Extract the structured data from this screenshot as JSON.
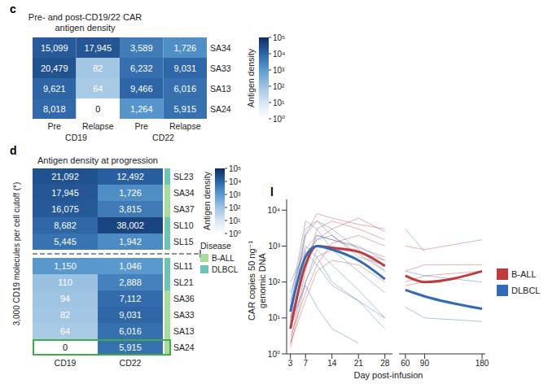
{
  "chart_data": [
    {
      "type": "heatmap",
      "panel": "c",
      "title": "Pre- and post-CD19/22 CAR antigen density",
      "columns": [
        "Pre",
        "Relapse",
        "Pre",
        "Relapse"
      ],
      "column_groups": [
        {
          "label": "CD19",
          "span": 2
        },
        {
          "label": "CD22",
          "span": 2
        }
      ],
      "rows": [
        "SA34",
        "SA33",
        "SA13",
        "SA24"
      ],
      "cells": [
        [
          15099,
          17945,
          3589,
          1726
        ],
        [
          20479,
          82,
          6232,
          9031
        ],
        [
          9621,
          64,
          9466,
          6016
        ],
        [
          8018,
          0,
          1264,
          5915
        ]
      ],
      "cell_labels": [
        [
          "15,099",
          "17,945",
          "3,589",
          "1,726"
        ],
        [
          "20,479",
          "82",
          "6,232",
          "9,031"
        ],
        [
          "9,621",
          "64",
          "9,466",
          "6,016"
        ],
        [
          "8,018",
          "0",
          "1,264",
          "5,915"
        ]
      ],
      "colorbar": {
        "title": "Antigen density",
        "range": [
          1,
          100000
        ],
        "ticks": [
          {
            "value": 1,
            "label": "10⁰"
          },
          {
            "value": 10,
            "label": "10¹"
          },
          {
            "value": 100,
            "label": "10²"
          },
          {
            "value": 1000,
            "label": "10³"
          },
          {
            "value": 10000,
            "label": "10⁴"
          },
          {
            "value": 100000,
            "label": "10⁵"
          }
        ]
      }
    },
    {
      "type": "heatmap",
      "panel": "d",
      "title": "Antigen density at progression",
      "y_label": "3,000 CD19 molecules per cell cutoff (*)",
      "cutoff": 3000,
      "columns": [
        "CD19",
        "CD22"
      ],
      "rows": [
        "SL23",
        "SA34",
        "SA37",
        "SL10",
        "SL15",
        "SL11",
        "SL21",
        "SA36",
        "SA33",
        "SA13",
        "SA24"
      ],
      "row_disease": [
        "DLBCL",
        "B-ALL",
        "B-ALL",
        "DLBCL",
        "DLBCL",
        "DLBCL",
        "DLBCL",
        "B-ALL",
        "B-ALL",
        "B-ALL",
        "B-ALL"
      ],
      "cells": [
        [
          21092,
          12492
        ],
        [
          17945,
          1726
        ],
        [
          16075,
          3815
        ],
        [
          8682,
          38002
        ],
        [
          5445,
          1942
        ],
        [
          1150,
          1046
        ],
        [
          110,
          2888
        ],
        [
          94,
          7112
        ],
        [
          82,
          9031
        ],
        [
          64,
          6016
        ],
        [
          0,
          5915
        ]
      ],
      "cell_labels": [
        [
          "21,092",
          "12,492"
        ],
        [
          "17,945",
          "1,726"
        ],
        [
          "16,075",
          "3,815"
        ],
        [
          "8,682",
          "38,002"
        ],
        [
          "5,445",
          "1,942"
        ],
        [
          "1,150",
          "1,046"
        ],
        [
          "110",
          "2,888"
        ],
        [
          "94",
          "7,112"
        ],
        [
          "82",
          "9,031"
        ],
        [
          "64",
          "6,016"
        ],
        [
          "0",
          "5,915"
        ]
      ],
      "highlight_row": "SA24",
      "colorbar": {
        "title": "Antigen density",
        "range": [
          1,
          100000
        ],
        "ticks": [
          {
            "value": 1,
            "label": "10⁰"
          },
          {
            "value": 10,
            "label": "10¹"
          },
          {
            "value": 100,
            "label": "10²"
          },
          {
            "value": 1000,
            "label": "10³"
          },
          {
            "value": 10000,
            "label": "10⁴"
          },
          {
            "value": 100000,
            "label": "10⁵"
          }
        ]
      },
      "disease_legend": {
        "title": "Disease",
        "entries": [
          {
            "name": "B-ALL",
            "color": "#a6dc9c"
          },
          {
            "name": "DLBCL",
            "color": "#6cc4b4"
          }
        ]
      }
    },
    {
      "type": "line",
      "panel": "l",
      "y_label": "CAR copies 50 ng⁻¹ genomic DNA",
      "x_label": "Day post-infusion",
      "log": "y",
      "ylim": [
        1,
        20000
      ],
      "yticks": [
        {
          "value": 1,
          "label": "10⁰"
        },
        {
          "value": 10,
          "label": "10¹"
        },
        {
          "value": 100,
          "label": "10²"
        },
        {
          "value": 1000,
          "label": "10³"
        },
        {
          "value": 10000,
          "label": "10⁴"
        }
      ],
      "x": [
        3,
        7,
        10,
        14,
        21,
        28,
        60,
        90,
        180
      ],
      "x_segments": [
        {
          "xlim": [
            2,
            30
          ],
          "xticks": [
            3,
            7,
            14,
            21,
            28
          ]
        },
        {
          "xlim": [
            50,
            185
          ],
          "xticks": [
            60,
            90,
            180
          ]
        }
      ],
      "legend": "right",
      "series": [
        {
          "name": "B-ALL",
          "color": "#c23b3b",
          "values": [
            5,
            300,
            1000,
            900,
            700,
            280,
            150,
            100,
            200
          ],
          "patients": [
            [
              2,
              200,
              3000,
              5000,
              3000,
              1500,
              null,
              null,
              null
            ],
            [
              10,
              2000,
              8000,
              6000,
              4000,
              3000,
              1000,
              800,
              1500
            ],
            [
              1.5,
              100,
              500,
              800,
              700,
              400,
              100,
              150,
              200
            ],
            [
              5,
              800,
              2000,
              1500,
              900,
              500,
              null,
              null,
              null
            ],
            [
              3,
              50,
              300,
              1200,
              2000,
              1000,
              200,
              300,
              300
            ],
            [
              20,
              3000,
              5000,
              2000,
              600,
              200,
              null,
              null,
              null
            ],
            [
              2,
              30,
              200,
              400,
              300,
              100,
              80,
              100,
              null
            ],
            [
              8,
              500,
              1500,
              3000,
              6000,
              2500,
              800,
              null,
              null
            ]
          ]
        },
        {
          "name": "DLBCL",
          "color": "#2f6bb8",
          "values": [
            15,
            500,
            1000,
            800,
            400,
            120,
            60,
            40,
            18
          ],
          "patients": [
            [
              20,
              2000,
              5000,
              3000,
              800,
              200,
              null,
              null,
              null
            ],
            [
              50,
              1000,
              500,
              100,
              30,
              5,
              null,
              null,
              null
            ],
            [
              10,
              300,
              2000,
              1500,
              1000,
              400,
              200,
              150,
              100
            ],
            [
              5,
              100,
              800,
              300,
              60,
              10,
              null,
              null,
              null
            ],
            [
              30,
              5000,
              3000,
              800,
              200,
              50,
              20,
              10,
              8
            ],
            [
              15,
              600,
              1500,
              2000,
              500,
              300,
              3000,
              700,
              null
            ],
            [
              8,
              80,
              20,
              5,
              2,
              null,
              null,
              null,
              null
            ],
            [
              100,
              700,
              300,
              80,
              30,
              10,
              3,
              null,
              null
            ]
          ]
        }
      ]
    }
  ]
}
